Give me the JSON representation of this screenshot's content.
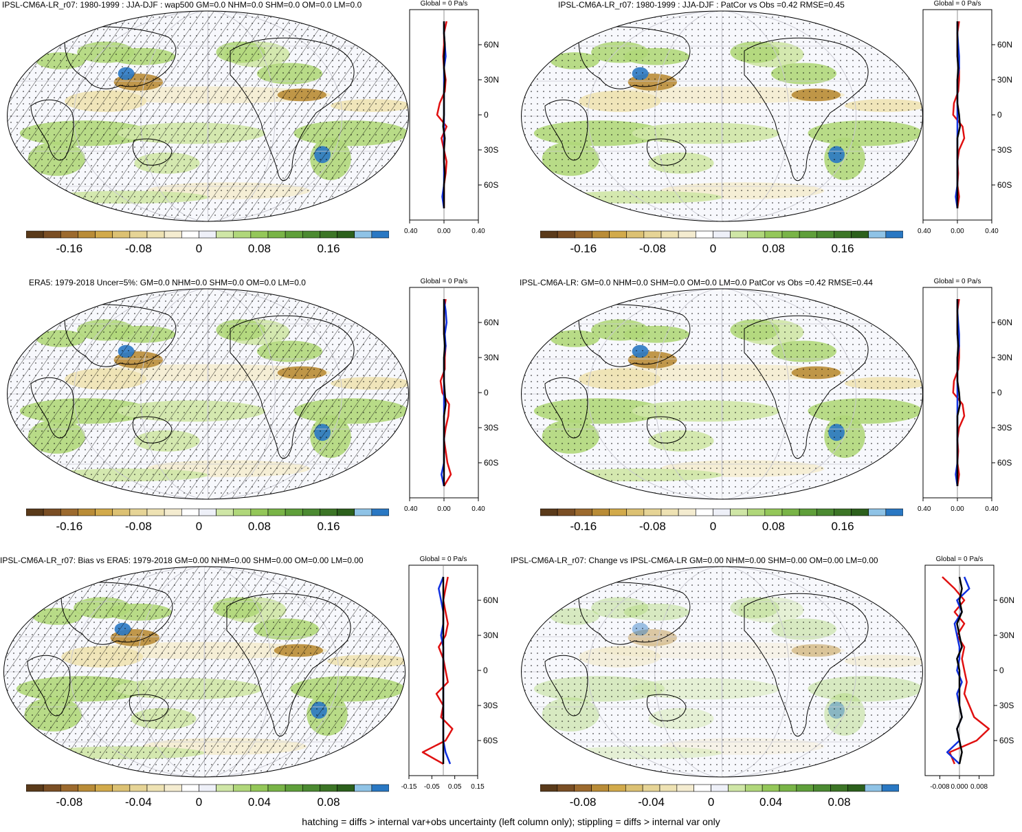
{
  "colors": {
    "scale": [
      "#5a3a1a",
      "#7a4e24",
      "#9c6a2e",
      "#b98c37",
      "#d2aa4b",
      "#dcc173",
      "#e6d496",
      "#eee2b3",
      "#f4ecd0",
      "#ffffff",
      "#eef0f8",
      "#cfe6a6",
      "#b0d77a",
      "#94c759",
      "#79b447",
      "#5f9f3a",
      "#4b8a31",
      "#3c7526",
      "#2c601c",
      "#8fc3e6",
      "#2a78c3"
    ],
    "land": "#7fb84e",
    "ocean": "#f7f8fc",
    "global_line": "#000000",
    "land_line": "#e01010",
    "ocean_line": "#1030e0"
  },
  "chart_data": [
    {
      "type": "heatmap",
      "title": "IPSL-CM6A-LR_r07: 1980-1999 : JJA-DJF : wap500 GM=0.0 NHM=0.0 SHM=0.0 OM=0.0 LM=0.0",
      "colorbar_ticks": [
        "-0.16",
        "-0.08",
        "0",
        "0.08",
        "0.16"
      ],
      "profile": {
        "header": "Global = 0 Pa/s",
        "x_ticks": [
          "-0.40",
          "0.00",
          "0.40"
        ],
        "xlim": [
          -0.4,
          0.4
        ],
        "lat_ticks": [
          "60N",
          "30N",
          "0",
          "30S",
          "60S"
        ],
        "lat_values": [
          80,
          70,
          60,
          50,
          40,
          30,
          20,
          10,
          0,
          -10,
          -20,
          -30,
          -40,
          -50,
          -60,
          -70,
          -80
        ],
        "global": [
          0.0,
          0.0,
          0.01,
          0.0,
          0.0,
          0.01,
          0.0,
          0.0,
          0.0,
          -0.01,
          0.01,
          0.0,
          0.0,
          0.01,
          0.0,
          0.0,
          0.0
        ],
        "land": [
          0.03,
          0.0,
          0.0,
          -0.01,
          0.0,
          0.02,
          0.01,
          -0.05,
          -0.08,
          0.03,
          -0.03,
          0.0,
          0.03,
          0.02,
          0.0,
          0.0,
          0.0
        ],
        "ocean": [
          0.0,
          0.0,
          0.01,
          0.02,
          0.0,
          0.0,
          0.0,
          0.0,
          0.0,
          0.0,
          0.0,
          0.0,
          0.0,
          0.0,
          0.0,
          -0.02,
          0.0
        ]
      }
    },
    {
      "type": "heatmap",
      "title": "IPSL-CM6A-LR_r07: 1980-1999 : JJA-DJF : PatCor vs Obs =0.42 RMSE=0.45",
      "colorbar_ticks": [
        "-0.16",
        "-0.08",
        "0",
        "0.08",
        "0.16"
      ],
      "profile": {
        "header": "Global = 0 Pa/s",
        "x_ticks": [
          "-0.40",
          "0.00",
          "0.40"
        ],
        "xlim": [
          -0.4,
          0.4
        ],
        "lat_ticks": [
          "60N",
          "30N",
          "0",
          "30S",
          "60S"
        ],
        "lat_values": [
          80,
          70,
          60,
          50,
          40,
          30,
          20,
          10,
          0,
          -10,
          -20,
          -30,
          -40,
          -50,
          -60,
          -70,
          -80
        ],
        "global": [
          0.0,
          0.0,
          0.0,
          0.0,
          0.01,
          0.0,
          0.0,
          0.0,
          0.02,
          0.03,
          0.0,
          0.0,
          0.0,
          0.0,
          0.0,
          0.0,
          0.0
        ],
        "land": [
          0.02,
          0.0,
          0.0,
          0.0,
          0.02,
          0.02,
          0.01,
          -0.04,
          -0.05,
          0.06,
          0.08,
          0.02,
          0.0,
          0.01,
          0.0,
          0.02,
          0.0
        ],
        "ocean": [
          0.0,
          0.0,
          0.01,
          0.02,
          0.02,
          0.0,
          0.0,
          0.0,
          0.0,
          0.0,
          0.0,
          0.0,
          0.0,
          0.0,
          0.0,
          -0.02,
          0.0
        ]
      }
    },
    {
      "type": "heatmap",
      "title": "ERA5: 1979-2018 Uncer=5%: GM=0.0 NHM=0.0 SHM=0.0 OM=0.0 LM=0.0",
      "colorbar_ticks": [
        "-0.16",
        "-0.08",
        "0",
        "0.08",
        "0.16"
      ],
      "profile": {
        "header": "Global = 0 Pa/s",
        "x_ticks": [
          "-0.40",
          "0.00",
          "0.40"
        ],
        "xlim": [
          -0.4,
          0.4
        ],
        "lat_ticks": [
          "60N",
          "30N",
          "0",
          "30S",
          "60S"
        ],
        "lat_values": [
          80,
          70,
          60,
          50,
          40,
          30,
          20,
          10,
          0,
          -10,
          -20,
          -30,
          -40,
          -50,
          -60,
          -70,
          -80
        ],
        "global": [
          0.0,
          0.0,
          0.0,
          0.0,
          0.01,
          0.0,
          0.0,
          0.0,
          0.01,
          0.02,
          0.0,
          0.0,
          0.0,
          0.0,
          0.0,
          0.0,
          0.0
        ],
        "land": [
          0.02,
          0.0,
          0.0,
          0.0,
          0.02,
          0.01,
          0.01,
          -0.04,
          -0.02,
          0.06,
          0.05,
          0.02,
          0.0,
          0.02,
          0.04,
          0.08,
          0.0
        ],
        "ocean": [
          0.0,
          0.02,
          0.03,
          0.01,
          0.02,
          0.0,
          0.0,
          0.0,
          0.0,
          0.0,
          0.0,
          0.0,
          0.0,
          0.0,
          0.0,
          -0.03,
          0.0
        ]
      }
    },
    {
      "type": "heatmap",
      "title": "IPSL-CM6A-LR: GM=0.0 NHM=0.0 SHM=0.0 OM=0.0 LM=0.0 PatCor vs Obs =0.42 RMSE=0.44",
      "colorbar_ticks": [
        "-0.16",
        "-0.08",
        "0",
        "0.08",
        "0.16"
      ],
      "profile": {
        "header": "Global = 0 Pa/s",
        "x_ticks": [
          "-0.40",
          "0.00",
          "0.40"
        ],
        "xlim": [
          -0.4,
          0.4
        ],
        "lat_ticks": [
          "60N",
          "30N",
          "0",
          "30S",
          "60S"
        ],
        "lat_values": [
          80,
          70,
          60,
          50,
          40,
          30,
          20,
          10,
          0,
          -10,
          -20,
          -30,
          -40,
          -50,
          -60,
          -70,
          -80
        ],
        "global": [
          0.0,
          0.0,
          0.0,
          0.0,
          0.01,
          0.0,
          0.0,
          0.0,
          0.02,
          0.03,
          0.0,
          0.0,
          0.0,
          0.0,
          0.0,
          0.0,
          0.0
        ],
        "land": [
          0.02,
          0.0,
          0.0,
          0.0,
          0.02,
          0.02,
          0.01,
          -0.04,
          -0.05,
          0.06,
          0.08,
          0.02,
          0.0,
          0.01,
          0.0,
          0.02,
          0.0
        ],
        "ocean": [
          0.0,
          0.0,
          0.01,
          0.02,
          0.02,
          0.0,
          0.0,
          0.0,
          0.0,
          0.0,
          0.0,
          0.0,
          0.0,
          0.0,
          0.0,
          -0.02,
          0.0
        ]
      }
    },
    {
      "type": "heatmap",
      "title": "IPSL-CM6A-LR_r07: Bias vs ERA5: 1979-2018 GM=0.00 NHM=0.00 SHM=0.00 OM=0.00 LM=0.00",
      "colorbar_ticks": [
        "-0.08",
        "-0.04",
        "0",
        "0.04",
        "0.08"
      ],
      "profile": {
        "header": "Global = 0 Pa/s",
        "x_ticks": [
          "-0.15",
          "-0.05",
          "0.05",
          "0.15"
        ],
        "xlim": [
          -0.15,
          0.15
        ],
        "lat_ticks": [
          "60N",
          "30N",
          "0",
          "30S",
          "60S"
        ],
        "lat_values": [
          80,
          70,
          60,
          50,
          40,
          30,
          20,
          10,
          0,
          -10,
          -20,
          -30,
          -40,
          -50,
          -60,
          -70,
          -80
        ],
        "global": [
          0.0,
          0.0,
          0.0,
          0.0,
          0.0,
          0.0,
          0.0,
          0.0,
          0.0,
          0.0,
          0.0,
          0.0,
          0.0,
          0.0,
          0.0,
          0.0,
          0.0
        ],
        "land": [
          0.02,
          0.01,
          0.0,
          0.01,
          0.02,
          0.01,
          -0.02,
          0.0,
          0.01,
          0.02,
          -0.03,
          0.0,
          -0.01,
          0.04,
          0.01,
          -0.09,
          0.0
        ],
        "ocean": [
          0.0,
          -0.02,
          -0.01,
          0.0,
          0.0,
          -0.01,
          0.0,
          0.0,
          0.0,
          0.0,
          0.0,
          0.0,
          0.0,
          0.0,
          0.0,
          0.01,
          0.03
        ]
      }
    },
    {
      "type": "heatmap",
      "title": "IPSL-CM6A-LR_r07: Change vs IPSL-CM6A-LR GM=0.00 NHM=0.00 SHM=0.00 OM=0.00 LM=0.00",
      "colorbar_ticks": [
        "-0.08",
        "-0.04",
        "0",
        "0.04",
        "0.08"
      ],
      "profile": {
        "header": "Global = 0 Pa/s",
        "x_ticks": [
          "-0.008",
          "0.000",
          "0.008"
        ],
        "xlim": [
          -0.014,
          0.014
        ],
        "lat_ticks": [
          "60N",
          "30N",
          "0",
          "30S",
          "60S"
        ],
        "lat_values": [
          80,
          70,
          60,
          50,
          40,
          30,
          20,
          10,
          0,
          -10,
          -20,
          -30,
          -40,
          -50,
          -60,
          -70,
          -80
        ],
        "global": [
          0.0,
          0.001,
          0.0,
          0.001,
          -0.001,
          0.0,
          0.001,
          -0.001,
          0.0,
          0.0,
          0.0,
          0.0,
          0.001,
          -0.001,
          0.0,
          0.001,
          0.0
        ],
        "land": [
          -0.007,
          -0.002,
          0.002,
          -0.002,
          0.002,
          -0.001,
          0.002,
          0.001,
          0.002,
          0.003,
          0.002,
          0.004,
          0.006,
          0.012,
          0.007,
          -0.004,
          -0.002
        ],
        "ocean": [
          0.002,
          0.004,
          -0.001,
          0.001,
          -0.002,
          -0.001,
          0.0,
          0.0,
          -0.001,
          0.001,
          -0.001,
          0.0,
          0.001,
          -0.001,
          0.0,
          -0.005,
          0.0
        ]
      }
    }
  ],
  "footer": "hatching = diffs > internal var+obs uncertainty (left column only); stippling = diffs > internal var only"
}
